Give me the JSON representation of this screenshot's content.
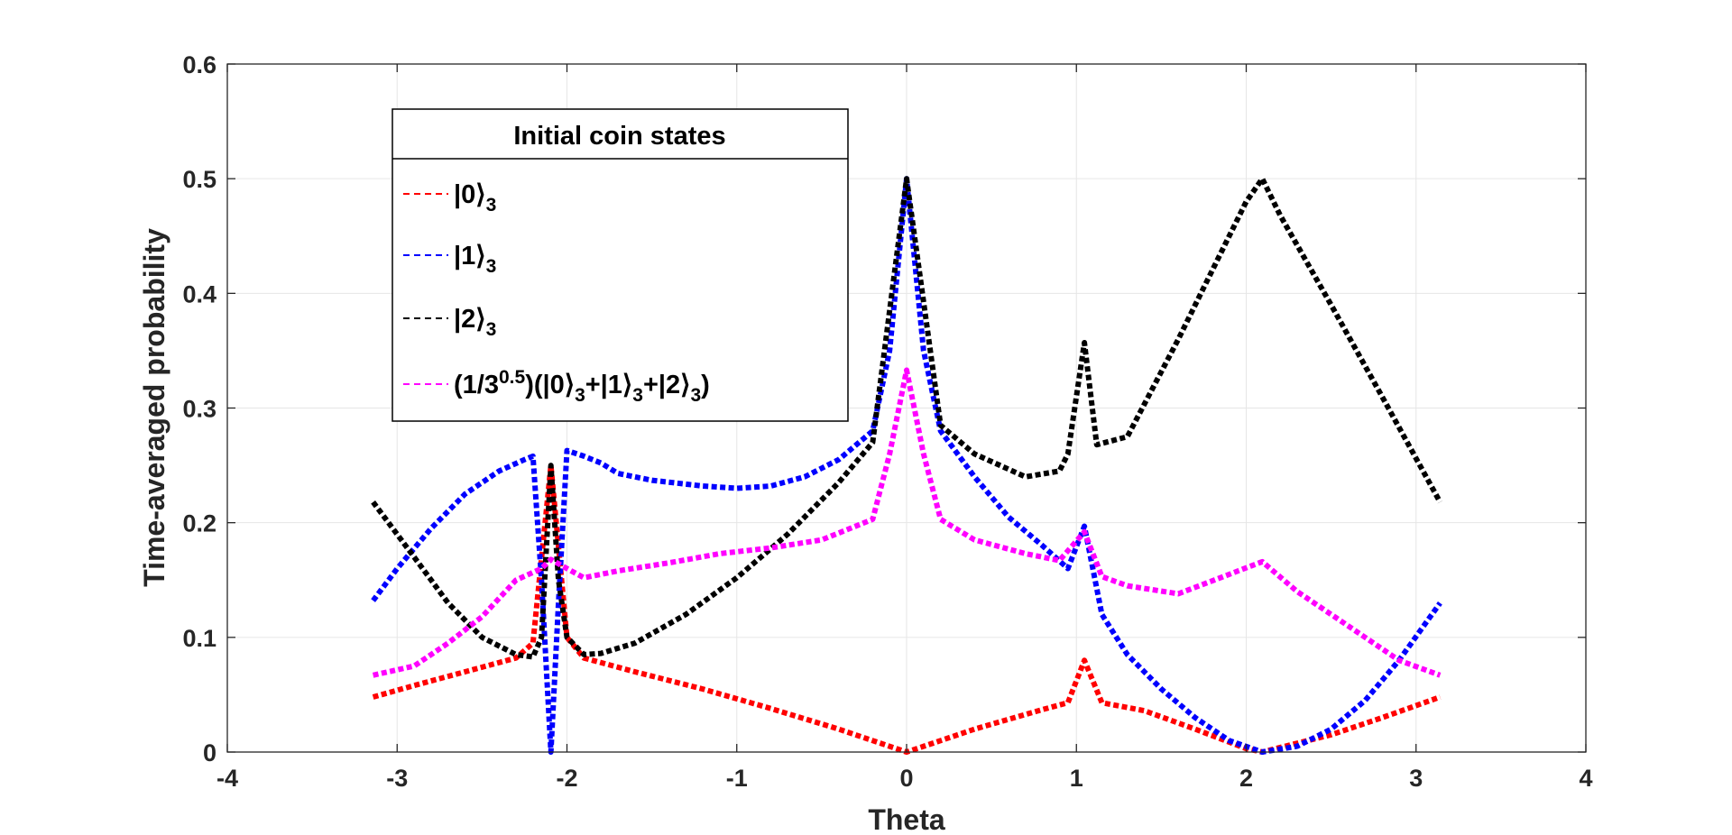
{
  "chart_data": {
    "type": "line",
    "xlabel": "Theta",
    "ylabel": "Time-averaged probability",
    "xlim": [
      -4,
      4
    ],
    "ylim": [
      0,
      0.6
    ],
    "xticks": [
      -4,
      -3,
      -2,
      -1,
      0,
      1,
      2,
      3,
      4
    ],
    "yticks": [
      0,
      0.1,
      0.2,
      0.3,
      0.4,
      0.5,
      0.6
    ],
    "xtick_labels": [
      "-4",
      "-3",
      "-2",
      "-1",
      "0",
      "1",
      "2",
      "3",
      "4"
    ],
    "ytick_labels": [
      "0",
      "0.1",
      "0.2",
      "0.3",
      "0.4",
      "0.5",
      "0.6"
    ],
    "grid": true,
    "legend": {
      "title": "Initial coin states",
      "placement": "top-left"
    },
    "series": [
      {
        "name": "|0⟩3",
        "legend_parts": [
          {
            "t": "|0⟩",
            "s": "normal"
          },
          {
            "t": "3",
            "s": "sub"
          }
        ],
        "color": "#ff0000",
        "x": [
          -3.1416,
          -2.9,
          -2.6,
          -2.3,
          -2.2,
          -2.0944,
          -2.0,
          -1.9,
          -1.6,
          -1.2,
          -0.8,
          -0.4,
          -0.2,
          0.0,
          0.2,
          0.4,
          0.8,
          0.95,
          1.0472,
          1.15,
          1.4,
          1.7,
          2.0,
          2.0944,
          2.2,
          2.5,
          2.8,
          3.1416
        ],
        "y": [
          0.048,
          0.058,
          0.07,
          0.082,
          0.095,
          0.25,
          0.1,
          0.082,
          0.07,
          0.055,
          0.038,
          0.02,
          0.01,
          0.0,
          0.01,
          0.02,
          0.037,
          0.043,
          0.08,
          0.043,
          0.036,
          0.02,
          0.003,
          0.0,
          0.004,
          0.015,
          0.03,
          0.048
        ]
      },
      {
        "name": "|1⟩3",
        "legend_parts": [
          {
            "t": "|1⟩",
            "s": "normal"
          },
          {
            "t": "3",
            "s": "sub"
          }
        ],
        "color": "#0000ff",
        "x": [
          -3.1416,
          -3.0,
          -2.8,
          -2.6,
          -2.4,
          -2.25,
          -2.2,
          -2.15,
          -2.0944,
          -2.05,
          -2.0,
          -1.9,
          -1.8,
          -1.7,
          -1.5,
          -1.2,
          -1.0,
          -0.8,
          -0.6,
          -0.4,
          -0.2,
          -0.1,
          0.0,
          0.1,
          0.2,
          0.4,
          0.6,
          0.8,
          0.95,
          1.0472,
          1.15,
          1.3,
          1.5,
          1.7,
          1.9,
          2.0944,
          2.3,
          2.5,
          2.7,
          2.9,
          3.1416
        ],
        "y": [
          0.132,
          0.16,
          0.195,
          0.225,
          0.245,
          0.255,
          0.258,
          0.15,
          0.0,
          0.13,
          0.263,
          0.258,
          0.252,
          0.243,
          0.237,
          0.232,
          0.23,
          0.232,
          0.24,
          0.255,
          0.28,
          0.35,
          0.5,
          0.35,
          0.28,
          0.24,
          0.205,
          0.18,
          0.16,
          0.197,
          0.12,
          0.085,
          0.055,
          0.03,
          0.01,
          0.0,
          0.005,
          0.02,
          0.045,
          0.08,
          0.13
        ]
      },
      {
        "name": "|2⟩3",
        "legend_parts": [
          {
            "t": "|2⟩",
            "s": "normal"
          },
          {
            "t": "3",
            "s": "sub"
          }
        ],
        "color": "#000000",
        "x": [
          -3.1416,
          -2.9,
          -2.7,
          -2.5,
          -2.3,
          -2.2,
          -2.15,
          -2.0944,
          -2.05,
          -2.0,
          -1.9,
          -1.8,
          -1.6,
          -1.3,
          -1.0,
          -0.7,
          -0.4,
          -0.2,
          0.0,
          0.2,
          0.4,
          0.7,
          0.9,
          0.95,
          1.0472,
          1.12,
          1.3,
          1.6,
          1.8,
          2.0,
          2.0944,
          2.2,
          2.5,
          2.8,
          3.1416
        ],
        "y": [
          0.218,
          0.17,
          0.13,
          0.1,
          0.085,
          0.083,
          0.1,
          0.25,
          0.15,
          0.1,
          0.085,
          0.086,
          0.095,
          0.12,
          0.152,
          0.19,
          0.235,
          0.27,
          0.5,
          0.285,
          0.26,
          0.24,
          0.245,
          0.26,
          0.357,
          0.268,
          0.275,
          0.36,
          0.42,
          0.48,
          0.5,
          0.468,
          0.39,
          0.31,
          0.218
        ]
      },
      {
        "name": "(1/30.5)(|0⟩3+|1⟩3+|2⟩3)",
        "legend_parts": [
          {
            "t": "(1/3",
            "s": "normal"
          },
          {
            "t": "0.5",
            "s": "sup"
          },
          {
            "t": ")(|0⟩",
            "s": "normal"
          },
          {
            "t": "3",
            "s": "sub"
          },
          {
            "t": "+|1⟩",
            "s": "normal"
          },
          {
            "t": "3",
            "s": "sub"
          },
          {
            "t": "+|2⟩",
            "s": "normal"
          },
          {
            "t": "3",
            "s": "sub"
          },
          {
            "t": ")",
            "s": "normal"
          }
        ],
        "color": "#ff00ff",
        "x": [
          -3.1416,
          -2.9,
          -2.7,
          -2.5,
          -2.3,
          -2.15,
          -2.0944,
          -2.0,
          -1.9,
          -1.7,
          -1.4,
          -1.1,
          -0.8,
          -0.5,
          -0.2,
          -0.1,
          0.0,
          0.1,
          0.2,
          0.4,
          0.7,
          0.9,
          1.0472,
          1.15,
          1.3,
          1.6,
          1.9,
          2.0944,
          2.3,
          2.6,
          2.9,
          3.1416
        ],
        "y": [
          0.067,
          0.075,
          0.095,
          0.118,
          0.15,
          0.16,
          0.168,
          0.16,
          0.152,
          0.158,
          0.165,
          0.173,
          0.178,
          0.185,
          0.203,
          0.26,
          0.333,
          0.26,
          0.203,
          0.185,
          0.173,
          0.167,
          0.192,
          0.153,
          0.145,
          0.138,
          0.155,
          0.166,
          0.14,
          0.11,
          0.08,
          0.067
        ]
      }
    ]
  }
}
